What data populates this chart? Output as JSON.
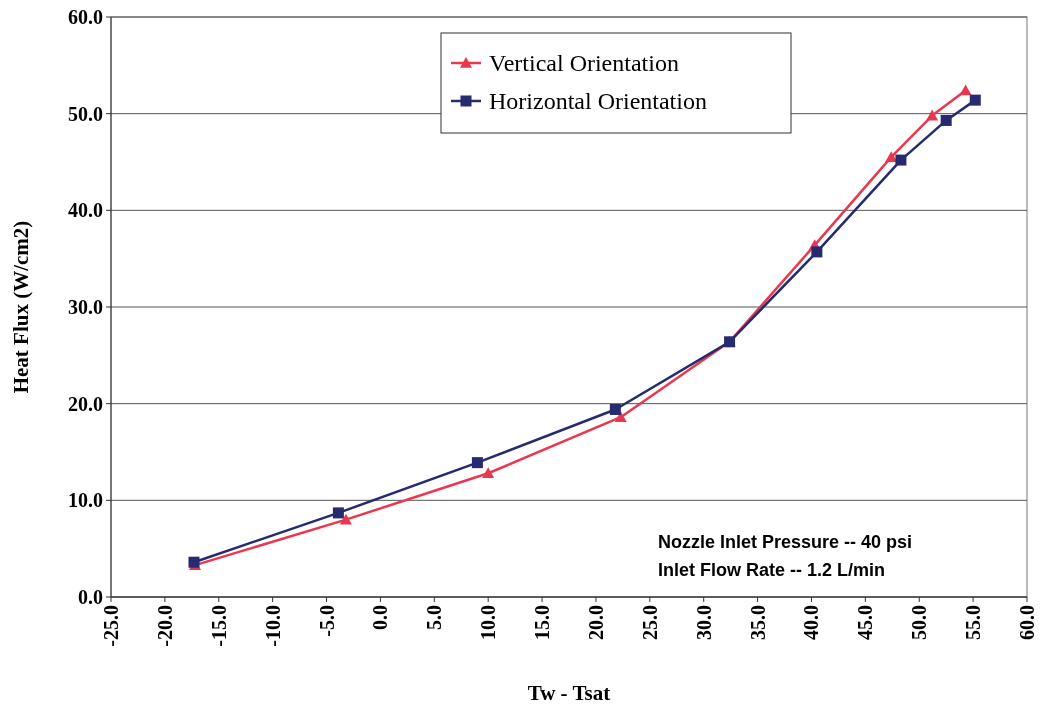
{
  "chart_data": {
    "type": "line",
    "xlabel": "Tw - Tsat",
    "ylabel": "Heat Flux (W/cm2)",
    "xlim": [
      -25,
      60
    ],
    "xticks": [
      {
        "value": -25,
        "label": "-25.0"
      },
      {
        "value": -20,
        "label": "-20.0"
      },
      {
        "value": -15,
        "label": "-15.0"
      },
      {
        "value": -10,
        "label": "-10.0"
      },
      {
        "value": -5,
        "label": "-5.0"
      },
      {
        "value": 0,
        "label": "0.0"
      },
      {
        "value": 5,
        "label": "5.0"
      },
      {
        "value": 10,
        "label": "10.0"
      },
      {
        "value": 15,
        "label": "15.0"
      },
      {
        "value": 20,
        "label": "20.0"
      },
      {
        "value": 25,
        "label": "25.0"
      },
      {
        "value": 30,
        "label": "30.0"
      },
      {
        "value": 35,
        "label": "35.0"
      },
      {
        "value": 40,
        "label": "40.0"
      },
      {
        "value": 45,
        "label": "45.0"
      },
      {
        "value": 50,
        "label": "50.0"
      },
      {
        "value": 55,
        "label": "55.0"
      },
      {
        "value": 60,
        "label": "60.0"
      }
    ],
    "ylim": [
      0,
      60
    ],
    "yticks": [
      {
        "value": 0,
        "label": "0.0"
      },
      {
        "value": 10,
        "label": "10.0"
      },
      {
        "value": 20,
        "label": "20.0"
      },
      {
        "value": 30,
        "label": "30.0"
      },
      {
        "value": 40,
        "label": "40.0"
      },
      {
        "value": 50,
        "label": "50.0"
      },
      {
        "value": 60,
        "label": "60.0"
      }
    ],
    "grid": "y",
    "legend": "top",
    "line_style": "solid",
    "annotations": [
      "Nozzle Inlet Pressure -- 40 psi",
      "Inlet Flow Rate -- 1.2 L/min"
    ],
    "series": [
      {
        "name": "Vertical Orientation",
        "color": "#e8384f",
        "marker": "triangle",
        "x": [
          -17.2,
          -3.2,
          10.0,
          22.3,
          32.4,
          40.3,
          47.4,
          51.2,
          54.3
        ],
        "values": [
          3.3,
          8.0,
          12.8,
          18.6,
          26.4,
          36.4,
          45.5,
          49.8,
          52.4
        ]
      },
      {
        "name": "Horizontal Orientation",
        "color": "#262a6e",
        "marker": "square",
        "x": [
          -17.3,
          -3.9,
          9.0,
          21.8,
          32.4,
          40.5,
          48.3,
          52.5,
          55.2
        ],
        "values": [
          3.6,
          8.7,
          13.9,
          19.4,
          26.4,
          35.7,
          45.2,
          49.3,
          51.4
        ]
      }
    ]
  }
}
